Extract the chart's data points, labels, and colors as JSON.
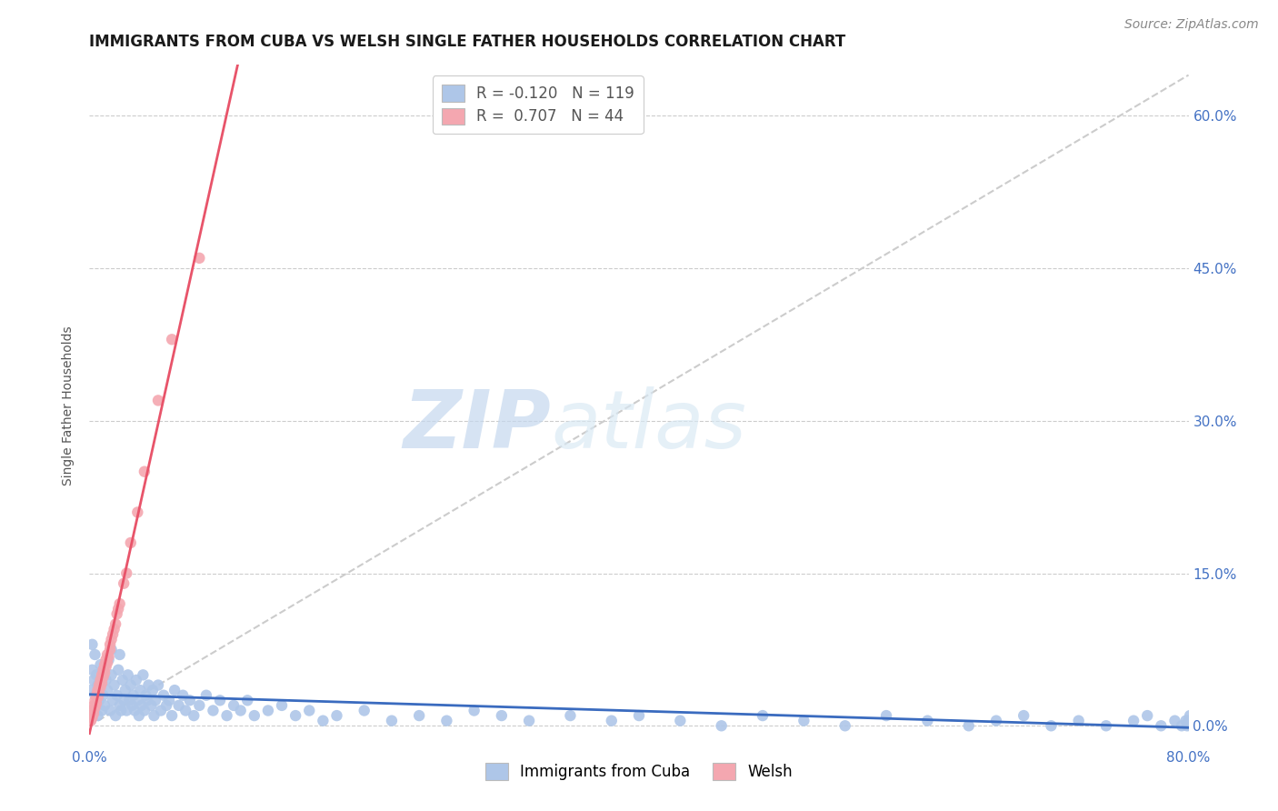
{
  "title": "IMMIGRANTS FROM CUBA VS WELSH SINGLE FATHER HOUSEHOLDS CORRELATION CHART",
  "source": "Source: ZipAtlas.com",
  "ylabel": "Single Father Households",
  "xlim": [
    0.0,
    0.8
  ],
  "ylim": [
    -0.02,
    0.65
  ],
  "yticks": [
    0.0,
    0.15,
    0.3,
    0.45,
    0.6
  ],
  "ytick_labels": [
    "0.0%",
    "15.0%",
    "30.0%",
    "45.0%",
    "60.0%"
  ],
  "xticks": [
    0.0,
    0.8
  ],
  "xtick_labels": [
    "0.0%",
    "80.0%"
  ],
  "background_color": "#ffffff",
  "grid_color": "#cccccc",
  "watermark_zip": "ZIP",
  "watermark_atlas": "atlas",
  "series": [
    {
      "name": "Immigrants from Cuba",
      "R": -0.12,
      "N": 119,
      "color": "#aec6e8",
      "line_color": "#3a6bbf",
      "x": [
        0.001,
        0.002,
        0.002,
        0.003,
        0.004,
        0.004,
        0.005,
        0.005,
        0.006,
        0.006,
        0.007,
        0.008,
        0.009,
        0.01,
        0.01,
        0.011,
        0.012,
        0.013,
        0.014,
        0.015,
        0.016,
        0.016,
        0.017,
        0.018,
        0.019,
        0.02,
        0.021,
        0.022,
        0.022,
        0.023,
        0.024,
        0.025,
        0.026,
        0.027,
        0.028,
        0.029,
        0.03,
        0.031,
        0.032,
        0.033,
        0.034,
        0.035,
        0.036,
        0.037,
        0.038,
        0.039,
        0.04,
        0.041,
        0.042,
        0.043,
        0.045,
        0.046,
        0.047,
        0.048,
        0.05,
        0.052,
        0.054,
        0.056,
        0.058,
        0.06,
        0.062,
        0.065,
        0.068,
        0.07,
        0.073,
        0.076,
        0.08,
        0.085,
        0.09,
        0.095,
        0.1,
        0.105,
        0.11,
        0.115,
        0.12,
        0.13,
        0.14,
        0.15,
        0.16,
        0.17,
        0.18,
        0.2,
        0.22,
        0.24,
        0.26,
        0.28,
        0.3,
        0.32,
        0.35,
        0.38,
        0.4,
        0.43,
        0.46,
        0.49,
        0.52,
        0.55,
        0.58,
        0.61,
        0.64,
        0.66,
        0.68,
        0.7,
        0.72,
        0.74,
        0.76,
        0.77,
        0.78,
        0.79,
        0.795,
        0.798,
        0.799,
        0.8,
        0.801,
        0.802,
        0.803,
        0.804,
        0.805,
        0.806,
        0.807
      ],
      "y": [
        0.035,
        0.055,
        0.08,
        0.045,
        0.03,
        0.07,
        0.02,
        0.05,
        0.01,
        0.04,
        0.025,
        0.06,
        0.015,
        0.055,
        0.03,
        0.02,
        0.045,
        0.035,
        0.065,
        0.015,
        0.05,
        0.075,
        0.025,
        0.04,
        0.01,
        0.03,
        0.055,
        0.02,
        0.07,
        0.015,
        0.045,
        0.025,
        0.035,
        0.015,
        0.05,
        0.025,
        0.04,
        0.02,
        0.03,
        0.015,
        0.045,
        0.025,
        0.01,
        0.035,
        0.02,
        0.05,
        0.015,
        0.03,
        0.025,
        0.04,
        0.02,
        0.035,
        0.01,
        0.025,
        0.04,
        0.015,
        0.03,
        0.02,
        0.025,
        0.01,
        0.035,
        0.02,
        0.03,
        0.015,
        0.025,
        0.01,
        0.02,
        0.03,
        0.015,
        0.025,
        0.01,
        0.02,
        0.015,
        0.025,
        0.01,
        0.015,
        0.02,
        0.01,
        0.015,
        0.005,
        0.01,
        0.015,
        0.005,
        0.01,
        0.005,
        0.015,
        0.01,
        0.005,
        0.01,
        0.005,
        0.01,
        0.005,
        0.0,
        0.01,
        0.005,
        0.0,
        0.01,
        0.005,
        0.0,
        0.005,
        0.01,
        0.0,
        0.005,
        0.0,
        0.005,
        0.01,
        0.0,
        0.005,
        0.0,
        0.005,
        0.0,
        0.005,
        0.01,
        0.0,
        0.005,
        0.0,
        0.005,
        0.0,
        0.005
      ]
    },
    {
      "name": "Welsh",
      "R": 0.707,
      "N": 44,
      "color": "#f4a7b0",
      "line_color": "#e8546a",
      "x": [
        0.001,
        0.001,
        0.002,
        0.002,
        0.003,
        0.003,
        0.004,
        0.004,
        0.005,
        0.005,
        0.006,
        0.006,
        0.007,
        0.007,
        0.008,
        0.008,
        0.009,
        0.009,
        0.01,
        0.01,
        0.011,
        0.011,
        0.012,
        0.012,
        0.013,
        0.013,
        0.014,
        0.015,
        0.015,
        0.016,
        0.017,
        0.018,
        0.019,
        0.02,
        0.021,
        0.022,
        0.025,
        0.027,
        0.03,
        0.035,
        0.04,
        0.05,
        0.06,
        0.08
      ],
      "y": [
        0.005,
        0.01,
        0.008,
        0.015,
        0.012,
        0.02,
        0.018,
        0.025,
        0.022,
        0.03,
        0.028,
        0.035,
        0.032,
        0.04,
        0.038,
        0.045,
        0.042,
        0.05,
        0.048,
        0.055,
        0.052,
        0.06,
        0.058,
        0.065,
        0.062,
        0.07,
        0.068,
        0.075,
        0.08,
        0.085,
        0.09,
        0.095,
        0.1,
        0.11,
        0.115,
        0.12,
        0.14,
        0.15,
        0.18,
        0.21,
        0.25,
        0.32,
        0.38,
        0.46
      ]
    }
  ],
  "diagonal_line": {
    "color": "#cccccc",
    "style": "--",
    "x0": 0.0,
    "y0": 0.0,
    "x1": 0.8,
    "y1": 0.64
  },
  "title_color": "#1a1a1a",
  "axis_tick_color": "#4472c4",
  "title_fontsize": 12,
  "axis_label_fontsize": 10,
  "tick_fontsize": 11,
  "source_fontsize": 10
}
